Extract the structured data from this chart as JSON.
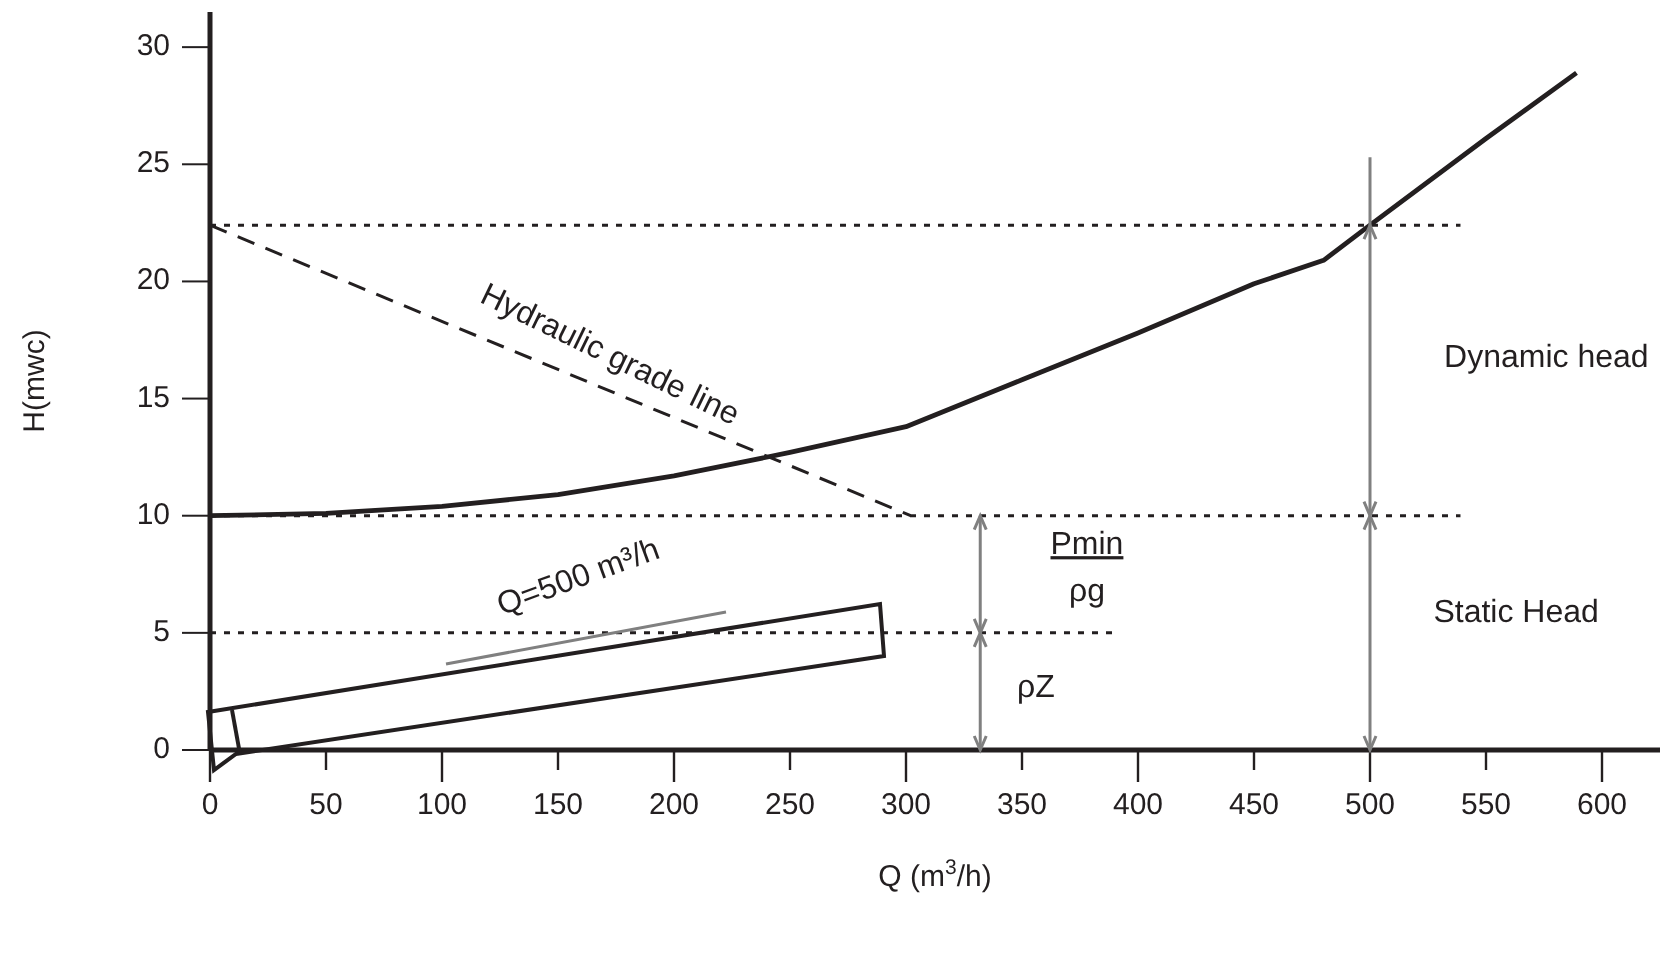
{
  "chart_data": {
    "type": "line",
    "xlabel": "Q (m$^{3}$/h)",
    "ylabel": "H(mwc)",
    "xlim": [
      0,
      625
    ],
    "ylim": [
      0,
      31.5
    ],
    "xticks": [
      0,
      50,
      100,
      150,
      200,
      250,
      300,
      350,
      400,
      450,
      500,
      550,
      600
    ],
    "yticks": [
      0,
      5,
      10,
      15,
      20,
      25,
      30
    ],
    "grid": false,
    "marker": "none",
    "series": [
      {
        "color": "#231f20",
        "line_style": "solid",
        "x": [
          0,
          50,
          100,
          150,
          200,
          250,
          300,
          350,
          400,
          450,
          480,
          500,
          550,
          589
        ],
        "values": [
          10,
          10.1,
          10.4,
          10.9,
          11.7,
          12.7,
          13.8,
          15.8,
          17.8,
          19.9,
          20.9,
          22.4,
          26.1,
          28.9
        ]
      },
      {
        "color": "#231f20",
        "line_style": "dashed",
        "x": [
          0,
          302
        ],
        "values": [
          22.4,
          10
        ]
      },
      {
        "color": "#231f20",
        "line_style": "dotted",
        "x": [
          0,
          539
        ],
        "values": [
          22.4,
          22.4
        ]
      },
      {
        "color": "#231f20",
        "line_style": "dotted",
        "x": [
          0,
          539
        ],
        "values": [
          10,
          10
        ]
      },
      {
        "color": "#231f20",
        "line_style": "dotted",
        "x": [
          0,
          391
        ],
        "values": [
          5,
          5
        ]
      },
      {
        "color": "#808080",
        "line_style": "solid",
        "x": [
          332,
          332,
          332
        ],
        "values": [
          0,
          5,
          10
        ]
      },
      {
        "color": "#808080",
        "line_style": "solid",
        "x": [
          500,
          500,
          500,
          500
        ],
        "values": [
          0,
          10,
          22.4,
          25.3
        ]
      }
    ],
    "annotations": [
      "Hydraulic grade line",
      "Q=500 m³/h",
      "Pmin",
      "ρg",
      "ρZ",
      "Dynamic head",
      "Static Head"
    ]
  }
}
